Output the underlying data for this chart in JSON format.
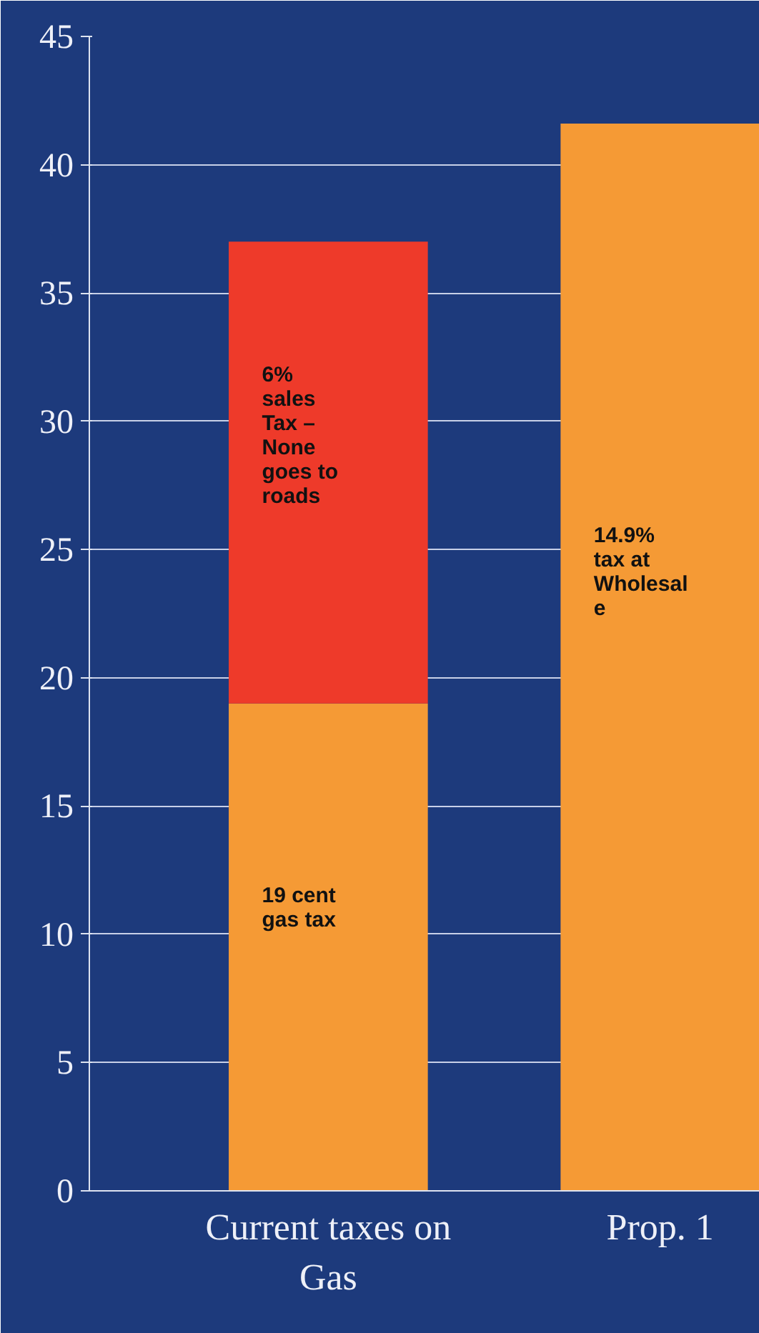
{
  "chart_data": {
    "type": "bar",
    "stacked": true,
    "categories": [
      "Current taxes on\nGas",
      "Prop. 1"
    ],
    "series": [
      {
        "color": "#f59a35",
        "values": [
          19,
          41.6
        ]
      },
      {
        "color": "#ee3a2a",
        "values": [
          18,
          null
        ]
      }
    ],
    "ylim": [
      0,
      45
    ],
    "yticks": [
      0,
      5,
      10,
      15,
      20,
      25,
      30,
      35,
      40,
      45
    ],
    "grid": "y",
    "annotations": [
      "19 cent\ngas tax",
      "14.9%\ntax at\nWholesal\ne",
      "6%\nsales\nTax –\nNone\ngoes to\nroads"
    ]
  }
}
